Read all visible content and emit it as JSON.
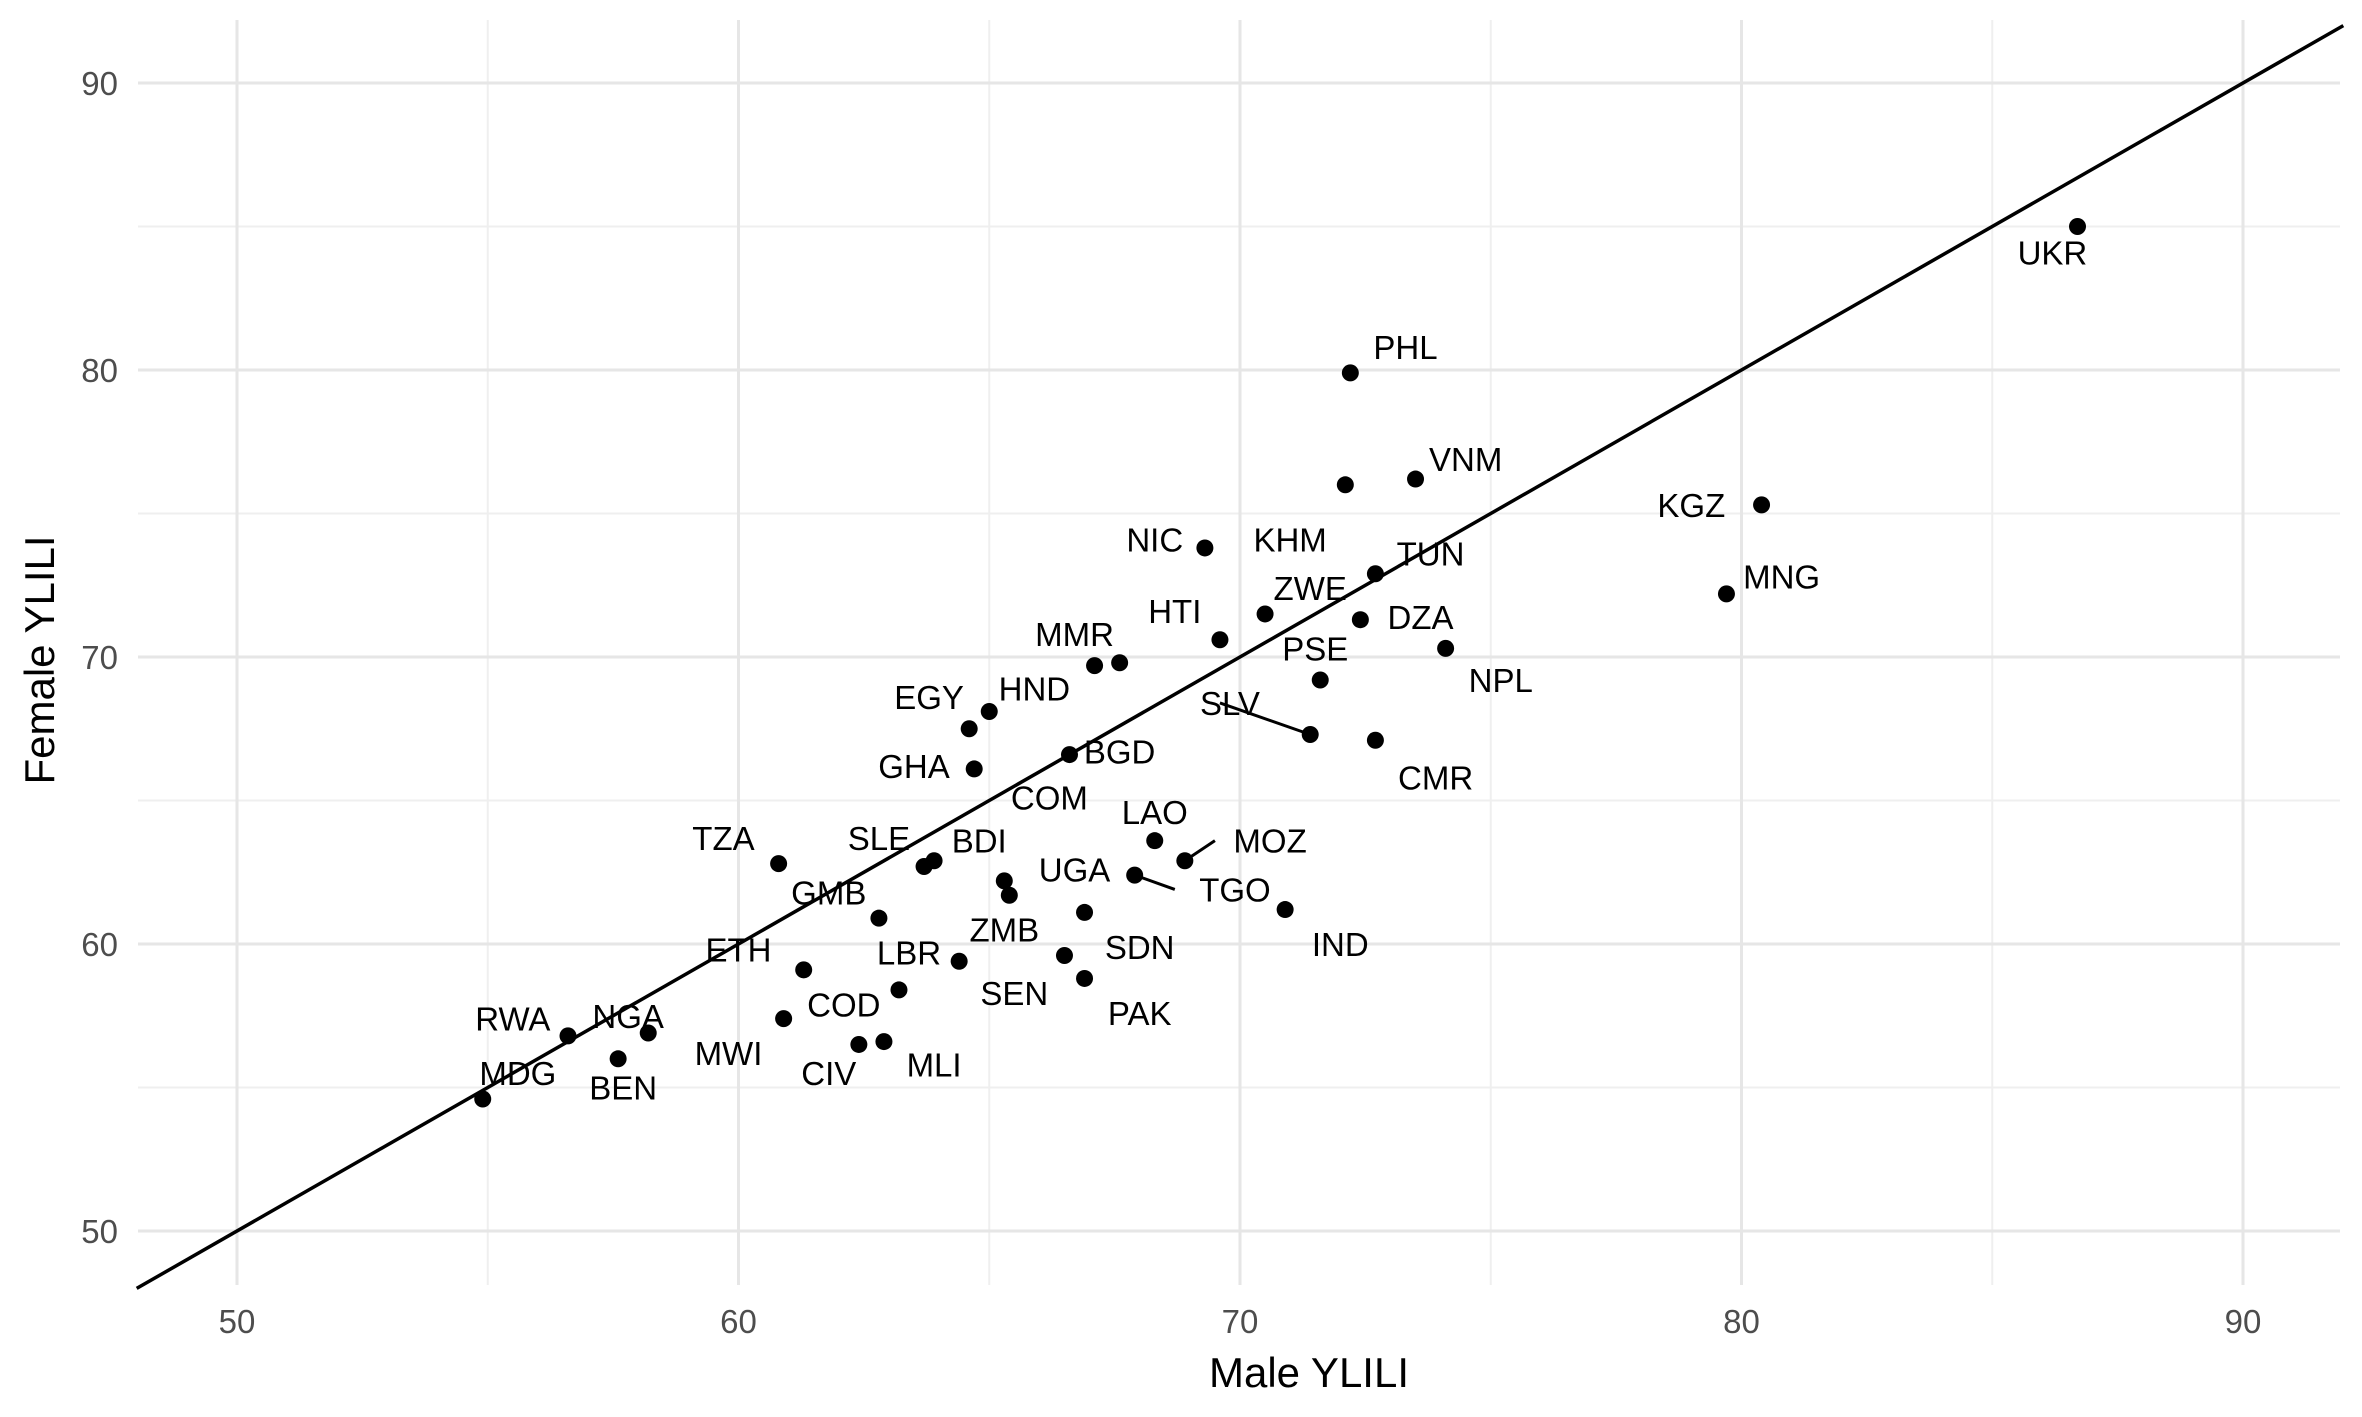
{
  "chart_data": {
    "type": "scatter",
    "xlabel": "Male YLILI",
    "ylabel": "Female YLILI",
    "xlim": [
      48,
      92
    ],
    "ylim": [
      48,
      92
    ],
    "x_ticks": [
      50,
      60,
      70,
      80,
      90
    ],
    "y_ticks": [
      50,
      60,
      70,
      80,
      90
    ],
    "grid": true,
    "reference_line": "y = x",
    "points": [
      {
        "label": "UKR",
        "x": 86.7,
        "y": 85.0
      },
      {
        "label": "PHL",
        "x": 72.2,
        "y": 79.9
      },
      {
        "label": "VNM",
        "x": 73.5,
        "y": 76.2
      },
      {
        "label": "KHM",
        "x": 72.1,
        "y": 76.0
      },
      {
        "label": "KGZ",
        "x": 80.4,
        "y": 75.3
      },
      {
        "label": "NIC",
        "x": 69.3,
        "y": 73.8
      },
      {
        "label": "TUN",
        "x": 72.7,
        "y": 72.9
      },
      {
        "label": "MNG",
        "x": 79.7,
        "y": 72.2
      },
      {
        "label": "ZWE",
        "x": 70.5,
        "y": 71.5
      },
      {
        "label": "DZA",
        "x": 72.4,
        "y": 71.3
      },
      {
        "label": "HTI",
        "x": 69.6,
        "y": 70.6
      },
      {
        "label": "NPL",
        "x": 74.1,
        "y": 70.3
      },
      {
        "label": "MMR",
        "x": 67.1,
        "y": 69.7
      },
      {
        "label": "MMR",
        "x": 67.6,
        "y": 69.8
      },
      {
        "label": "PSE",
        "x": 71.6,
        "y": 69.2
      },
      {
        "label": "HND",
        "x": 65.0,
        "y": 68.1
      },
      {
        "label": "EGY",
        "x": 64.6,
        "y": 67.5
      },
      {
        "label": "SLV",
        "x": 71.4,
        "y": 67.3
      },
      {
        "label": "CMR",
        "x": 72.7,
        "y": 67.1
      },
      {
        "label": "BGD",
        "x": 66.6,
        "y": 66.6
      },
      {
        "label": "GHA",
        "x": 64.7,
        "y": 66.1
      },
      {
        "label": "LAO",
        "x": 68.3,
        "y": 63.6
      },
      {
        "label": "MOZ",
        "x": 68.9,
        "y": 62.9
      },
      {
        "label": "BDI",
        "x": 63.9,
        "y": 62.9
      },
      {
        "label": "TZA",
        "x": 60.8,
        "y": 62.8
      },
      {
        "label": "SLE",
        "x": 63.7,
        "y": 62.7
      },
      {
        "label": "UGA",
        "x": 67.9,
        "y": 62.4
      },
      {
        "label": "ZMB",
        "x": 65.3,
        "y": 62.2
      },
      {
        "label": "ZMB",
        "x": 65.4,
        "y": 61.7
      },
      {
        "label": "IND",
        "x": 70.9,
        "y": 61.2
      },
      {
        "label": "SDN",
        "x": 66.9,
        "y": 61.1
      },
      {
        "label": "GMB",
        "x": 62.8,
        "y": 60.9
      },
      {
        "label": "SDN",
        "x": 66.5,
        "y": 59.6
      },
      {
        "label": "LBR",
        "x": 64.4,
        "y": 59.4
      },
      {
        "label": "ETH",
        "x": 61.3,
        "y": 59.1
      },
      {
        "label": "PAK",
        "x": 66.9,
        "y": 58.8
      },
      {
        "label": "SEN",
        "x": 63.2,
        "y": 58.4
      },
      {
        "label": "COD",
        "x": 60.9,
        "y": 57.4
      },
      {
        "label": "NGA",
        "x": 58.2,
        "y": 56.9
      },
      {
        "label": "RWA",
        "x": 56.6,
        "y": 56.8
      },
      {
        "label": "MLI",
        "x": 62.9,
        "y": 56.6
      },
      {
        "label": "CIV",
        "x": 62.4,
        "y": 56.5
      },
      {
        "label": "BEN",
        "x": 57.6,
        "y": 56.0
      },
      {
        "label": "MDG",
        "x": 54.9,
        "y": 54.6
      }
    ],
    "annotations": [
      {
        "text": "UKR",
        "x": 86.2,
        "y": 84.1
      },
      {
        "text": "PHL",
        "x": 73.3,
        "y": 80.8
      },
      {
        "text": "VNM",
        "x": 74.5,
        "y": 76.9
      },
      {
        "text": "KHM",
        "x": 71.0,
        "y": 74.1
      },
      {
        "text": "KGZ",
        "x": 79.0,
        "y": 75.3
      },
      {
        "text": "NIC",
        "x": 68.3,
        "y": 74.1
      },
      {
        "text": "TUN",
        "x": 73.8,
        "y": 73.6
      },
      {
        "text": "MNG",
        "x": 80.8,
        "y": 72.8
      },
      {
        "text": "ZWE",
        "x": 71.4,
        "y": 72.4
      },
      {
        "text": "DZA",
        "x": 73.6,
        "y": 71.4
      },
      {
        "text": "HTI",
        "x": 68.7,
        "y": 71.6
      },
      {
        "text": "NPL",
        "x": 75.2,
        "y": 69.2
      },
      {
        "text": "MMR",
        "x": 66.7,
        "y": 70.8
      },
      {
        "text": "PSE",
        "x": 71.5,
        "y": 70.3
      },
      {
        "text": "HND",
        "x": 65.9,
        "y": 68.9
      },
      {
        "text": "EGY",
        "x": 63.8,
        "y": 68.6
      },
      {
        "text": "SLV",
        "x": 69.8,
        "y": 68.4
      },
      {
        "text": "CMR",
        "x": 73.9,
        "y": 65.8
      },
      {
        "text": "BGD",
        "x": 67.6,
        "y": 66.7
      },
      {
        "text": "GHA",
        "x": 63.5,
        "y": 66.2
      },
      {
        "text": "COM",
        "x": 66.2,
        "y": 65.1
      },
      {
        "text": "LAO",
        "x": 68.3,
        "y": 64.6
      },
      {
        "text": "MOZ",
        "x": 70.6,
        "y": 63.6
      },
      {
        "text": "BDI",
        "x": 64.8,
        "y": 63.6
      },
      {
        "text": "TZA",
        "x": 59.7,
        "y": 63.7
      },
      {
        "text": "SLE",
        "x": 62.8,
        "y": 63.7
      },
      {
        "text": "UGA",
        "x": 66.7,
        "y": 62.6
      },
      {
        "text": "TGO",
        "x": 69.9,
        "y": 61.9
      },
      {
        "text": "GMB",
        "x": 61.8,
        "y": 61.8
      },
      {
        "text": "IND",
        "x": 72.0,
        "y": 60.0
      },
      {
        "text": "ZMB",
        "x": 65.3,
        "y": 60.5
      },
      {
        "text": "SDN",
        "x": 68.0,
        "y": 59.9
      },
      {
        "text": "LBR",
        "x": 63.4,
        "y": 59.7
      },
      {
        "text": "ETH",
        "x": 60.0,
        "y": 59.8
      },
      {
        "text": "SEN",
        "x": 65.5,
        "y": 58.3
      },
      {
        "text": "PAK",
        "x": 68.0,
        "y": 57.6
      },
      {
        "text": "COD",
        "x": 62.1,
        "y": 57.9
      },
      {
        "text": "NGA",
        "x": 57.8,
        "y": 57.5
      },
      {
        "text": "RWA",
        "x": 55.5,
        "y": 57.4
      },
      {
        "text": "MWI",
        "x": 59.8,
        "y": 56.2
      },
      {
        "text": "CIV",
        "x": 61.8,
        "y": 55.5
      },
      {
        "text": "MLI",
        "x": 63.9,
        "y": 55.8
      },
      {
        "text": "BEN",
        "x": 57.7,
        "y": 55.0
      },
      {
        "text": "MDG",
        "x": 55.6,
        "y": 55.5
      }
    ],
    "leader_lines": [
      {
        "from": [
          69.6,
          68.4
        ],
        "to": [
          71.4,
          67.3
        ]
      },
      {
        "from": [
          69.5,
          63.6
        ],
        "to": [
          68.9,
          62.9
        ]
      },
      {
        "from": [
          68.7,
          61.9
        ],
        "to": [
          67.9,
          62.4
        ]
      }
    ]
  }
}
